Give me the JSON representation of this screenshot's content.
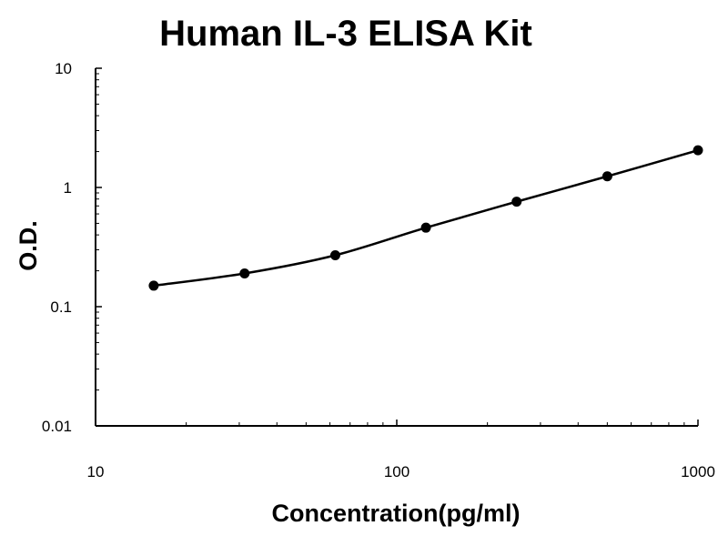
{
  "chart_data": {
    "type": "line",
    "title": "Human IL-3 ELISA Kit",
    "xlabel": "Concentration(pg/ml)",
    "ylabel": "O.D.",
    "x_scale": "log",
    "y_scale": "log",
    "xlim": [
      10,
      1000
    ],
    "ylim": [
      0.01,
      10
    ],
    "x_ticks": [
      "10",
      "100",
      "1000"
    ],
    "y_ticks": [
      "0.01",
      "0.1",
      "1",
      "10"
    ],
    "grid": false,
    "legend": "none",
    "colors": {
      "series": "#000000",
      "axis": "#000000"
    },
    "series": [
      {
        "x": [
          15.6,
          31.25,
          62.5,
          125,
          250,
          500,
          1000
        ],
        "y": [
          0.15,
          0.19,
          0.27,
          0.46,
          0.76,
          1.24,
          2.05
        ]
      }
    ]
  }
}
